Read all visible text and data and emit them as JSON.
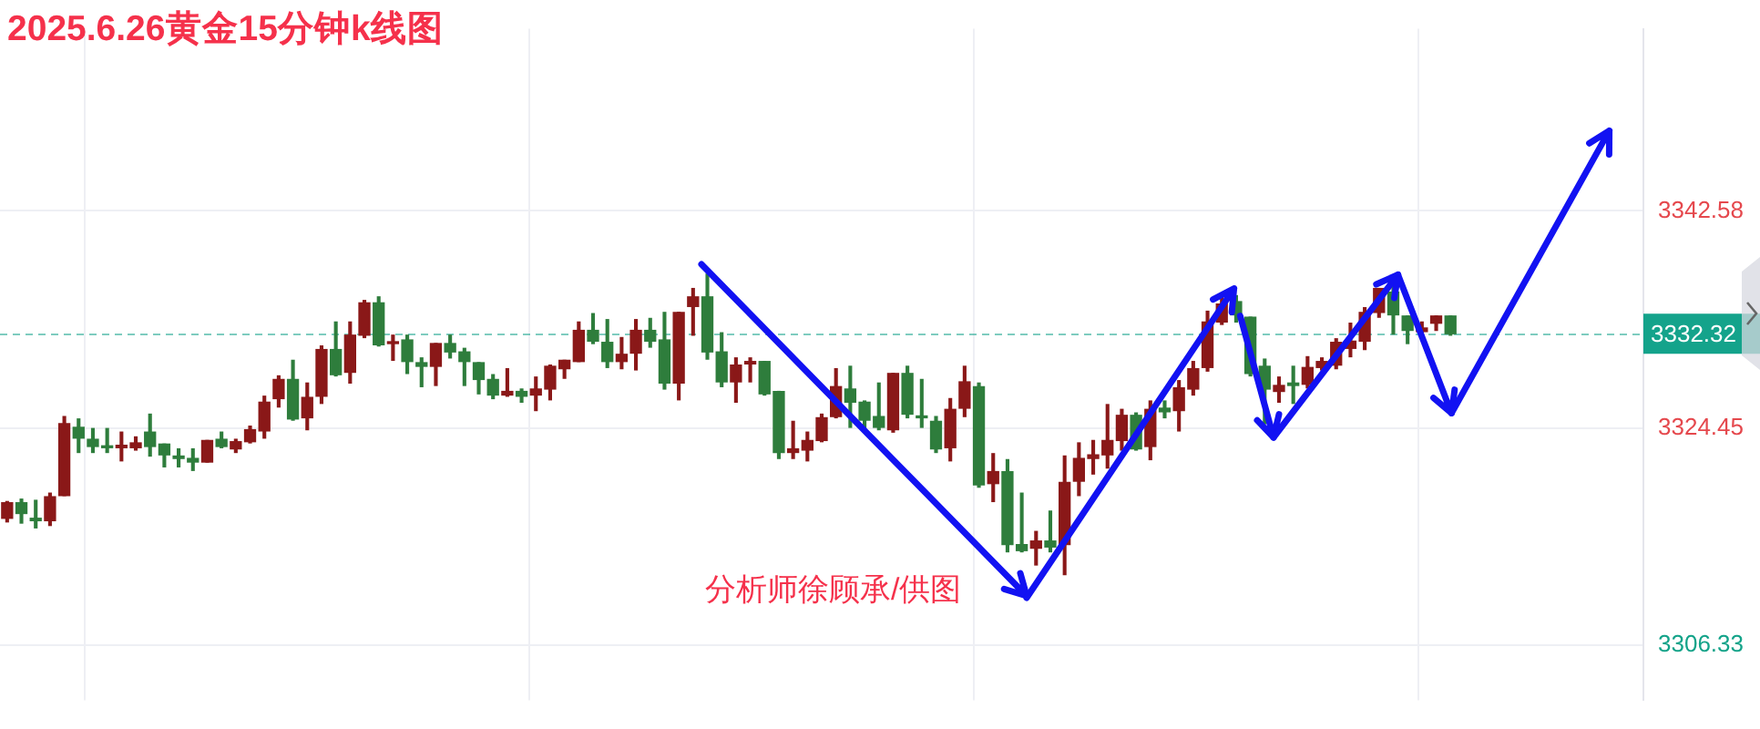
{
  "chart_data": {
    "type": "candlestick",
    "title": "2025.6.26黄金15分钟k线图",
    "annotations": [
      "分析师徐顾承/供图"
    ],
    "categories": [
      null,
      null,
      null,
      null,
      null,
      null,
      null,
      null,
      null,
      null,
      null,
      null,
      null,
      null,
      null,
      null,
      null,
      null,
      null,
      null,
      null,
      null,
      null,
      null,
      null,
      null,
      null,
      null,
      null,
      null,
      null,
      null,
      null,
      null,
      null,
      null,
      null,
      null,
      null,
      null,
      null,
      null,
      null,
      null,
      null,
      null,
      null,
      null,
      null,
      null,
      null,
      null,
      null,
      null,
      null,
      null,
      null,
      null,
      null,
      null,
      null,
      null,
      null,
      null,
      null,
      null,
      null,
      null,
      null,
      null,
      null,
      null,
      null,
      null,
      null,
      null,
      null,
      null,
      null,
      null,
      null,
      null,
      null,
      null,
      null,
      null,
      null,
      null,
      null,
      null,
      null,
      null,
      null,
      null,
      null,
      null,
      null,
      null,
      null,
      null,
      null,
      null,
      null,
      null,
      null,
      null,
      null,
      null,
      null,
      null,
      null,
      null,
      null,
      null,
      null
    ],
    "ohlc": [
      [
        3316.9,
        3318.3,
        3316.6,
        3318.2
      ],
      [
        3318.2,
        3318.5,
        3316.5,
        3317.3
      ],
      [
        3316.9,
        3318.4,
        3316.1,
        3316.7
      ],
      [
        3316.7,
        3319.0,
        3316.3,
        3318.7
      ],
      [
        3318.8,
        3325.4,
        3318.8,
        3324.8
      ],
      [
        3324.5,
        3325.2,
        3322.4,
        3323.6
      ],
      [
        3323.5,
        3324.4,
        3322.4,
        3322.9
      ],
      [
        3322.9,
        3324.4,
        3322.4,
        3322.8
      ],
      [
        3322.8,
        3324.1,
        3321.7,
        3323.0
      ],
      [
        3322.8,
        3323.7,
        3322.6,
        3323.2
      ],
      [
        3324.1,
        3325.6,
        3322.1,
        3322.9
      ],
      [
        3323.1,
        3323.1,
        3321.2,
        3322.2
      ],
      [
        3322.1,
        3322.7,
        3321.2,
        3321.9
      ],
      [
        3321.9,
        3322.7,
        3320.9,
        3321.6
      ],
      [
        3321.6,
        3323.4,
        3321.6,
        3323.4
      ],
      [
        3323.5,
        3324.1,
        3322.8,
        3322.9
      ],
      [
        3322.7,
        3323.5,
        3322.4,
        3323.3
      ],
      [
        3323.3,
        3324.6,
        3323.2,
        3324.3
      ],
      [
        3324.2,
        3327.1,
        3323.6,
        3326.6
      ],
      [
        3326.9,
        3328.8,
        3326.2,
        3328.5
      ],
      [
        3328.5,
        3330.1,
        3325.1,
        3325.2
      ],
      [
        3325.3,
        3328.2,
        3324.3,
        3327.0
      ],
      [
        3327.1,
        3331.3,
        3326.5,
        3331.0
      ],
      [
        3331.0,
        3333.3,
        3328.8,
        3328.9
      ],
      [
        3329.1,
        3333.3,
        3328.2,
        3332.2
      ],
      [
        3332.2,
        3335.1,
        3332.0,
        3334.9
      ],
      [
        3334.9,
        3335.4,
        3331.3,
        3331.4
      ],
      [
        3331.5,
        3332.2,
        3330.1,
        3331.6
      ],
      [
        3331.8,
        3332.2,
        3329.0,
        3330.0
      ],
      [
        3329.9,
        3330.3,
        3327.9,
        3329.6
      ],
      [
        3329.6,
        3331.5,
        3328.0,
        3331.5
      ],
      [
        3331.5,
        3332.2,
        3330.3,
        3330.8
      ],
      [
        3330.8,
        3331.1,
        3328.0,
        3330.0
      ],
      [
        3329.9,
        3329.9,
        3327.3,
        3328.5
      ],
      [
        3328.5,
        3328.9,
        3326.9,
        3327.2
      ],
      [
        3327.2,
        3329.4,
        3327.1,
        3327.5
      ],
      [
        3327.5,
        3327.7,
        3326.6,
        3327.1
      ],
      [
        3327.2,
        3328.7,
        3325.9,
        3327.7
      ],
      [
        3327.7,
        3329.7,
        3326.8,
        3329.6
      ],
      [
        3329.4,
        3330.1,
        3328.6,
        3330.1
      ],
      [
        3330.0,
        3333.3,
        3330.0,
        3332.6
      ],
      [
        3332.6,
        3334.0,
        3331.5,
        3331.7
      ],
      [
        3331.6,
        3333.5,
        3329.5,
        3330.0
      ],
      [
        3330.0,
        3332.0,
        3329.4,
        3330.6
      ],
      [
        3330.7,
        3333.5,
        3329.3,
        3332.6
      ],
      [
        3332.6,
        3333.6,
        3331.2,
        3331.7
      ],
      [
        3331.8,
        3334.1,
        3327.7,
        3328.2
      ],
      [
        3328.2,
        3334.1,
        3326.8,
        3334.1
      ],
      [
        3334.6,
        3336.1,
        3332.2,
        3335.4
      ],
      [
        3335.4,
        3337.3,
        3330.2,
        3330.8
      ],
      [
        3330.8,
        3332.4,
        3327.9,
        3328.3
      ],
      [
        3328.3,
        3330.3,
        3326.6,
        3329.7
      ],
      [
        3329.8,
        3330.3,
        3328.3,
        3330.0
      ],
      [
        3330.0,
        3330.0,
        3327.2,
        3327.3
      ],
      [
        3327.5,
        3327.5,
        3321.9,
        3322.4
      ],
      [
        3322.4,
        3325.0,
        3321.9,
        3322.7
      ],
      [
        3322.6,
        3324.1,
        3321.7,
        3323.4
      ],
      [
        3323.4,
        3325.6,
        3323.3,
        3325.3
      ],
      [
        3325.4,
        3329.4,
        3325.3,
        3327.9
      ],
      [
        3327.7,
        3329.6,
        3324.5,
        3326.6
      ],
      [
        3326.6,
        3326.7,
        3324.3,
        3325.1
      ],
      [
        3325.4,
        3328.2,
        3324.3,
        3324.5
      ],
      [
        3324.3,
        3329.0,
        3324.1,
        3329.0
      ],
      [
        3329.0,
        3329.6,
        3325.3,
        3325.6
      ],
      [
        3325.4,
        3328.5,
        3324.5,
        3325.3
      ],
      [
        3325.0,
        3325.4,
        3322.4,
        3322.7
      ],
      [
        3322.8,
        3326.9,
        3321.7,
        3326.0
      ],
      [
        3326.1,
        3329.6,
        3325.4,
        3328.3
      ],
      [
        3327.9,
        3328.2,
        3319.5,
        3319.7
      ],
      [
        3319.8,
        3322.3,
        3318.3,
        3320.8
      ],
      [
        3320.8,
        3321.8,
        3314.1,
        3314.7
      ],
      [
        3314.7,
        3319.0,
        3314.1,
        3314.2
      ],
      [
        3314.4,
        3315.8,
        3313.0,
        3315.0
      ],
      [
        3315.0,
        3317.5,
        3314.1,
        3314.5
      ],
      [
        3314.7,
        3322.1,
        3312.2,
        3319.9
      ],
      [
        3320.0,
        3323.2,
        3318.8,
        3321.9
      ],
      [
        3321.9,
        3323.4,
        3320.6,
        3322.2
      ],
      [
        3322.2,
        3326.4,
        3321.1,
        3323.4
      ],
      [
        3323.4,
        3326.0,
        3322.6,
        3325.5
      ],
      [
        3325.5,
        3325.7,
        3322.6,
        3322.7
      ],
      [
        3322.9,
        3326.7,
        3321.8,
        3326.0
      ],
      [
        3326.1,
        3326.7,
        3325.3,
        3325.8
      ],
      [
        3325.9,
        3328.4,
        3324.2,
        3327.8
      ],
      [
        3327.7,
        3330.0,
        3327.2,
        3329.4
      ],
      [
        3329.5,
        3334.2,
        3329.2,
        3333.3
      ],
      [
        3333.3,
        3335.5,
        3333.1,
        3334.8
      ],
      [
        3335.0,
        3335.5,
        3333.3,
        3333.9
      ],
      [
        3333.7,
        3333.7,
        3328.8,
        3329.0
      ],
      [
        3329.6,
        3330.2,
        3324.8,
        3327.7
      ],
      [
        3327.5,
        3328.7,
        3326.6,
        3328.0
      ],
      [
        3328.2,
        3329.6,
        3326.5,
        3328.0
      ],
      [
        3328.1,
        3330.4,
        3327.8,
        3329.5
      ],
      [
        3329.5,
        3330.3,
        3329.3,
        3330.0
      ],
      [
        3329.7,
        3331.9,
        3329.4,
        3331.6
      ],
      [
        3331.1,
        3333.2,
        3330.4,
        3331.7
      ],
      [
        3331.7,
        3334.5,
        3331.0,
        3334.1
      ],
      [
        3334.1,
        3336.1,
        3333.7,
        3336.1
      ],
      [
        3335.8,
        3336.3,
        3332.3,
        3333.9
      ],
      [
        3333.8,
        3333.8,
        3331.5,
        3332.6
      ],
      [
        3332.5,
        3333.3,
        3332.4,
        3332.8
      ],
      [
        3333.2,
        3333.8,
        3332.6,
        3333.8
      ],
      [
        3333.8,
        3333.8,
        3332.2,
        3332.32
      ],
      null,
      null,
      null,
      null,
      null,
      null,
      null,
      null,
      null,
      null,
      null,
      null,
      null
    ],
    "colors": [
      "#8a1818",
      "#2e7d3c",
      "#2e7d3c",
      "#8a1818",
      "#8a1818",
      "#2e7d3c",
      "#2e7d3c",
      "#2e7d3c",
      "#8a1818",
      "#8a1818",
      "#2e7d3c",
      "#2e7d3c",
      "#2e7d3c",
      "#2e7d3c",
      "#8a1818",
      "#2e7d3c",
      "#8a1818",
      "#8a1818",
      "#8a1818",
      "#8a1818",
      "#2e7d3c",
      "#8a1818",
      "#8a1818",
      "#2e7d3c",
      "#8a1818",
      "#8a1818",
      "#2e7d3c",
      "#8a1818",
      "#2e7d3c",
      "#2e7d3c",
      "#8a1818",
      "#2e7d3c",
      "#2e7d3c",
      "#2e7d3c",
      "#2e7d3c",
      "#8a1818",
      "#2e7d3c",
      "#8a1818",
      "#8a1818",
      "#8a1818",
      "#8a1818",
      "#2e7d3c",
      "#2e7d3c",
      "#8a1818",
      "#8a1818",
      "#2e7d3c",
      "#2e7d3c",
      "#8a1818",
      "#8a1818",
      "#2e7d3c",
      "#2e7d3c",
      "#8a1818",
      "#8a1818",
      "#2e7d3c",
      "#2e7d3c",
      "#8a1818",
      "#8a1818",
      "#8a1818",
      "#8a1818",
      "#2e7d3c",
      "#2e7d3c",
      "#2e7d3c",
      "#8a1818",
      "#2e7d3c",
      "#2e7d3c",
      "#2e7d3c",
      "#8a1818",
      "#8a1818",
      "#2e7d3c",
      "#8a1818",
      "#2e7d3c",
      "#2e7d3c",
      "#8a1818",
      "#2e7d3c",
      "#8a1818",
      "#8a1818",
      "#8a1818",
      "#8a1818",
      "#8a1818",
      "#2e7d3c",
      "#8a1818",
      "#2e7d3c",
      "#8a1818",
      "#8a1818",
      "#8a1818",
      "#8a1818",
      "#2e7d3c",
      "#2e7d3c",
      "#2e7d3c",
      "#8a1818",
      "#2e7d3c",
      "#8a1818",
      "#8a1818",
      "#8a1818",
      "#8a1818",
      "#8a1818",
      "#8a1818",
      "#2e7d3c",
      "#2e7d3c",
      "#8a1818",
      "#8a1818",
      "#2e7d3c",
      null,
      null,
      null,
      null,
      null,
      null,
      null,
      null,
      null,
      null,
      null,
      null,
      null
    ],
    "ylim": [
      3301.7,
      3357.8
    ],
    "yticks": [
      3306.33,
      3324.45,
      3342.58
    ],
    "grid": true,
    "tick_labels": "y",
    "ref_lines": [
      {
        "axis": "y",
        "value": 3332.32,
        "label": "3332.32",
        "color": "#14a38b",
        "line_style": "dashed"
      }
    ]
  }
}
